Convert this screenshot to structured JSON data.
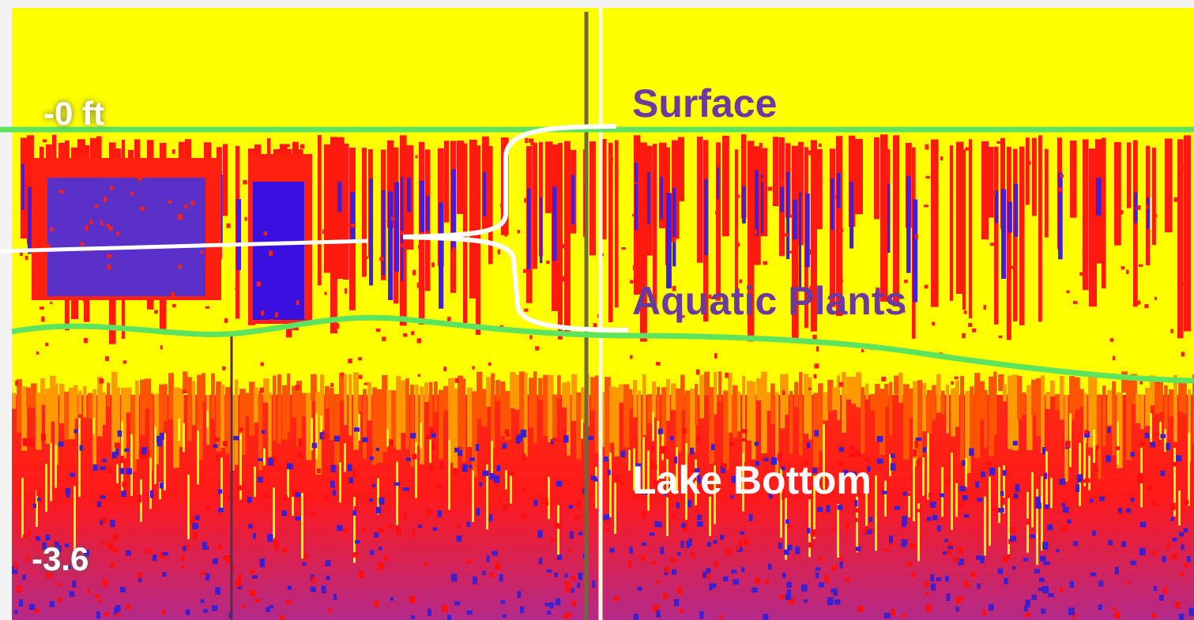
{
  "depth_labels": [
    "-0 ft",
    "-3.6"
  ],
  "annotations": {
    "surface": "Surface",
    "plants": "Aquatic Plants",
    "bottom": "Lake Bottom"
  }
}
